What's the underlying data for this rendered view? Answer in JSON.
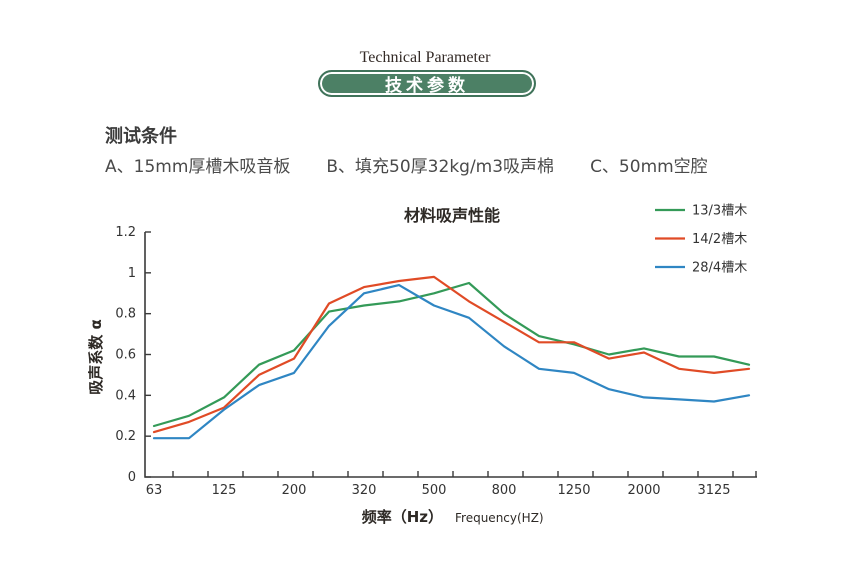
{
  "header": {
    "title_en": "Technical Parameter",
    "title_zh": "技术参数",
    "pill_color": "#4c8065",
    "pill_border_color": "#40735a"
  },
  "conditions": {
    "heading": "测试条件",
    "items": [
      "A、15mm厚槽木吸音板",
      "B、填充50厚32kg/m3吸声棉",
      "C、50mm空腔"
    ]
  },
  "chart_data": {
    "type": "line",
    "title": "材料吸声性能",
    "ylabel": "吸声系数 α",
    "xlabel_zh": "频率（Hz）",
    "xlabel_en": "Frequency(HZ)",
    "x_tick_labels": [
      "63",
      "125",
      "200",
      "320",
      "500",
      "800",
      "1250",
      "2000",
      "3125"
    ],
    "points_per_series": 18,
    "note": "axis labels mark every other data point (1/3-octave bands between labels)",
    "ylim": [
      0,
      1.2
    ],
    "y_ticks": [
      "0",
      "0.2",
      "0.4",
      "0.6",
      "0.8",
      "1",
      "1.2"
    ],
    "grid": false,
    "legend_position": "top-right",
    "axis_color": "#3a3a3a",
    "series": [
      {
        "name": "13/3槽木",
        "color": "#349a58",
        "values": [
          0.25,
          0.3,
          0.39,
          0.55,
          0.62,
          0.81,
          0.84,
          0.86,
          0.9,
          0.95,
          0.8,
          0.69,
          0.65,
          0.6,
          0.63,
          0.59,
          0.59,
          0.55
        ]
      },
      {
        "name": "14/2槽木",
        "color": "#e04b26",
        "values": [
          0.22,
          0.27,
          0.34,
          0.5,
          0.58,
          0.85,
          0.93,
          0.96,
          0.98,
          0.86,
          0.76,
          0.66,
          0.66,
          0.58,
          0.61,
          0.53,
          0.51,
          0.53
        ]
      },
      {
        "name": "28/4槽木",
        "color": "#2f86c3",
        "values": [
          0.19,
          0.19,
          0.33,
          0.45,
          0.51,
          0.74,
          0.9,
          0.94,
          0.84,
          0.78,
          0.64,
          0.53,
          0.51,
          0.43,
          0.39,
          0.38,
          0.37,
          0.4
        ]
      }
    ]
  }
}
